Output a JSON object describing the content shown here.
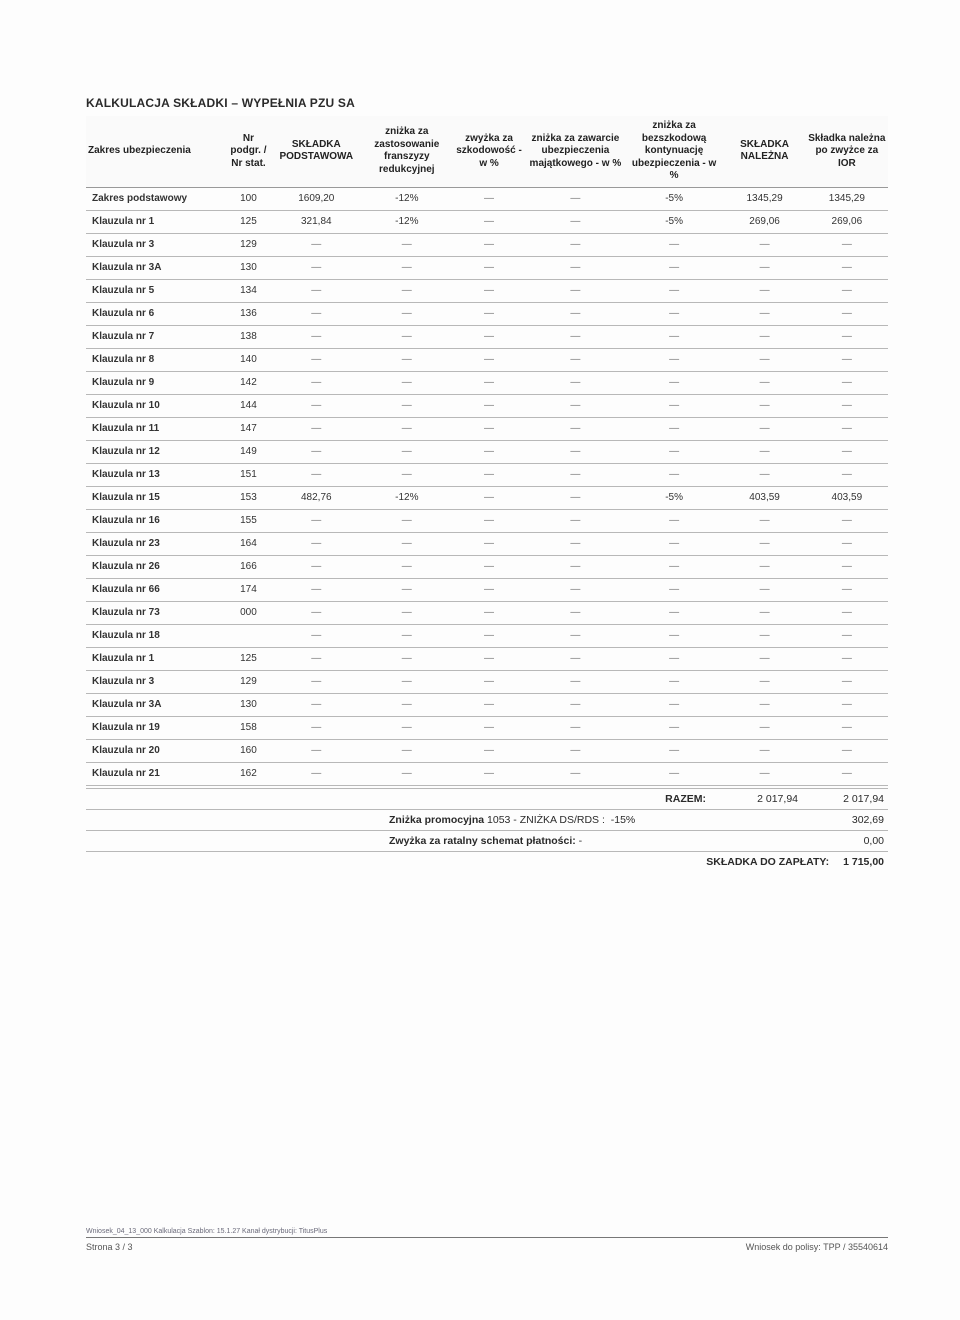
{
  "title": "KALKULACJA SKŁADKI – WYPEŁNIA PZU SA",
  "columns": [
    "Zakres ubezpieczenia",
    "Nr podgr. / Nr stat.",
    "SKŁADKA PODSTAWOWA",
    "zniżka za zastosowanie franszyzy redukcyjnej",
    "zwyżka za szkodowość - w %",
    "zniżka za zawarcie ubezpieczenia majątkowego - w %",
    "zniżka za bezszkodową kontynuację ubezpieczenia - w %",
    "SKŁADKA NALEŻNA",
    "Składka należna po zwyżce za IOR"
  ],
  "col_widths_pct": [
    17,
    5.5,
    11,
    11,
    9,
    12,
    12,
    10,
    10
  ],
  "rows": [
    {
      "name": "Zakres podstawowy",
      "nr": "100",
      "base": "1609,20",
      "fr": "-12%",
      "szk": "—",
      "maj": "—",
      "bez": "-5%",
      "nal": "1345,29",
      "ior": "1345,29"
    },
    {
      "name": "Klauzula nr 1",
      "nr": "125",
      "base": "321,84",
      "fr": "-12%",
      "szk": "—",
      "maj": "—",
      "bez": "-5%",
      "nal": "269,06",
      "ior": "269,06"
    },
    {
      "name": "Klauzula nr 3",
      "nr": "129",
      "base": "—",
      "fr": "—",
      "szk": "—",
      "maj": "—",
      "bez": "—",
      "nal": "—",
      "ior": "—"
    },
    {
      "name": "Klauzula nr 3A",
      "nr": "130",
      "base": "—",
      "fr": "—",
      "szk": "—",
      "maj": "—",
      "bez": "—",
      "nal": "—",
      "ior": "—"
    },
    {
      "name": "Klauzula nr 5",
      "nr": "134",
      "base": "—",
      "fr": "—",
      "szk": "—",
      "maj": "—",
      "bez": "—",
      "nal": "—",
      "ior": "—"
    },
    {
      "name": "Klauzula nr 6",
      "nr": "136",
      "base": "—",
      "fr": "—",
      "szk": "—",
      "maj": "—",
      "bez": "—",
      "nal": "—",
      "ior": "—"
    },
    {
      "name": "Klauzula nr 7",
      "nr": "138",
      "base": "—",
      "fr": "—",
      "szk": "—",
      "maj": "—",
      "bez": "—",
      "nal": "—",
      "ior": "—"
    },
    {
      "name": "Klauzula nr 8",
      "nr": "140",
      "base": "—",
      "fr": "—",
      "szk": "—",
      "maj": "—",
      "bez": "—",
      "nal": "—",
      "ior": "—"
    },
    {
      "name": "Klauzula nr 9",
      "nr": "142",
      "base": "—",
      "fr": "—",
      "szk": "—",
      "maj": "—",
      "bez": "—",
      "nal": "—",
      "ior": "—"
    },
    {
      "name": "Klauzula nr 10",
      "nr": "144",
      "base": "—",
      "fr": "—",
      "szk": "—",
      "maj": "—",
      "bez": "—",
      "nal": "—",
      "ior": "—"
    },
    {
      "name": "Klauzula nr 11",
      "nr": "147",
      "base": "—",
      "fr": "—",
      "szk": "—",
      "maj": "—",
      "bez": "—",
      "nal": "—",
      "ior": "—"
    },
    {
      "name": "Klauzula nr 12",
      "nr": "149",
      "base": "—",
      "fr": "—",
      "szk": "—",
      "maj": "—",
      "bez": "—",
      "nal": "—",
      "ior": "—"
    },
    {
      "name": "Klauzula nr 13",
      "nr": "151",
      "base": "—",
      "fr": "—",
      "szk": "—",
      "maj": "—",
      "bez": "—",
      "nal": "—",
      "ior": "—"
    },
    {
      "name": "Klauzula nr 15",
      "nr": "153",
      "base": "482,76",
      "fr": "-12%",
      "szk": "—",
      "maj": "—",
      "bez": "-5%",
      "nal": "403,59",
      "ior": "403,59"
    },
    {
      "name": "Klauzula nr 16",
      "nr": "155",
      "base": "—",
      "fr": "—",
      "szk": "—",
      "maj": "—",
      "bez": "—",
      "nal": "—",
      "ior": "—"
    },
    {
      "name": "Klauzula nr 23",
      "nr": "164",
      "base": "—",
      "fr": "—",
      "szk": "—",
      "maj": "—",
      "bez": "—",
      "nal": "—",
      "ior": "—"
    },
    {
      "name": "Klauzula nr 26",
      "nr": "166",
      "base": "—",
      "fr": "—",
      "szk": "—",
      "maj": "—",
      "bez": "—",
      "nal": "—",
      "ior": "—"
    },
    {
      "name": "Klauzula nr 66",
      "nr": "174",
      "base": "—",
      "fr": "—",
      "szk": "—",
      "maj": "—",
      "bez": "—",
      "nal": "—",
      "ior": "—"
    },
    {
      "name": "Klauzula nr 73",
      "nr": "000",
      "base": "—",
      "fr": "—",
      "szk": "—",
      "maj": "—",
      "bez": "—",
      "nal": "—",
      "ior": "—"
    },
    {
      "name": "Klauzula nr 18",
      "nr": "",
      "base": "—",
      "fr": "—",
      "szk": "—",
      "maj": "—",
      "bez": "—",
      "nal": "—",
      "ior": "—"
    },
    {
      "name": "Klauzula nr 1",
      "nr": "125",
      "base": "—",
      "fr": "—",
      "szk": "—",
      "maj": "—",
      "bez": "—",
      "nal": "—",
      "ior": "—"
    },
    {
      "name": "Klauzula nr 3",
      "nr": "129",
      "base": "—",
      "fr": "—",
      "szk": "—",
      "maj": "—",
      "bez": "—",
      "nal": "—",
      "ior": "—"
    },
    {
      "name": "Klauzula nr 3A",
      "nr": "130",
      "base": "—",
      "fr": "—",
      "szk": "—",
      "maj": "—",
      "bez": "—",
      "nal": "—",
      "ior": "—"
    },
    {
      "name": "Klauzula nr 19",
      "nr": "158",
      "base": "—",
      "fr": "—",
      "szk": "—",
      "maj": "—",
      "bez": "—",
      "nal": "—",
      "ior": "—"
    },
    {
      "name": "Klauzula nr 20",
      "nr": "160",
      "base": "—",
      "fr": "—",
      "szk": "—",
      "maj": "—",
      "bez": "—",
      "nal": "—",
      "ior": "—"
    },
    {
      "name": "Klauzula nr 21",
      "nr": "162",
      "base": "—",
      "fr": "—",
      "szk": "—",
      "maj": "—",
      "bez": "—",
      "nal": "—",
      "ior": "—"
    }
  ],
  "summary": {
    "razem_label": "RAZEM:",
    "razem_a": "2 017,94",
    "razem_b": "2 017,94",
    "promo_label": "Zniżka promocyjna",
    "promo_code": "1053 - ZNIŻKA DS/RDS :",
    "promo_pct": "-15%",
    "promo_amount": "302,69",
    "installment_label": "Zwyżka za ratalny schemat płatności:",
    "installment_val": "-",
    "installment_amount": "0,00",
    "pay_label": "SKŁADKA DO ZAPŁATY:",
    "pay_amount": "1 715,00"
  },
  "footer": {
    "meta": "Wniosek_04_13_000   Kalkulacja   Szablon: 15.1.27   Kanał dystrybucji: TitusPlus",
    "page": "Strona 3 / 3",
    "right": "Wniosek do polisy: TPP / 35540614"
  }
}
